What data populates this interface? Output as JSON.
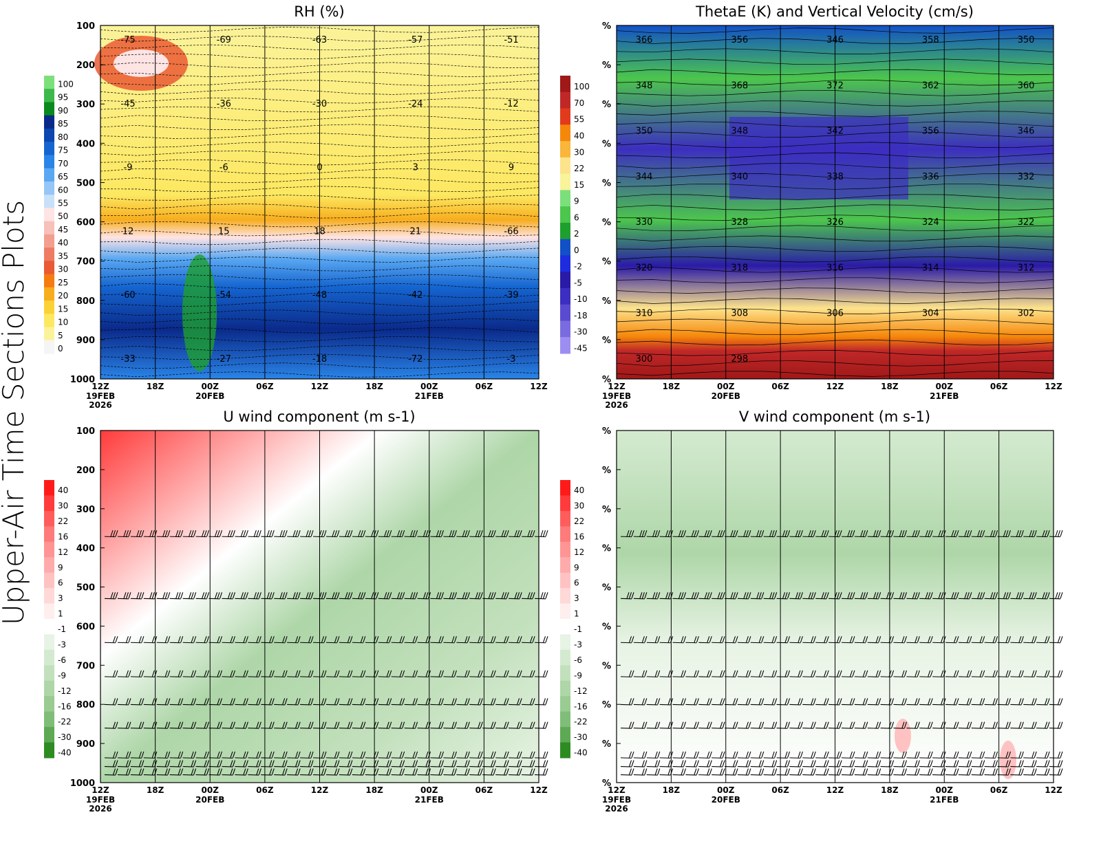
{
  "page_title": "Upper-Air Time Sections Plots",
  "time_axis": {
    "ticks": [
      "12Z",
      "18Z",
      "00Z",
      "06Z",
      "12Z",
      "18Z",
      "00Z",
      "06Z",
      "12Z"
    ],
    "date_labels": [
      {
        "at": "12Z",
        "index": 0,
        "lines": [
          "19FEB",
          "2026"
        ]
      },
      {
        "at": "00Z",
        "index": 2,
        "lines": [
          "20FEB"
        ]
      },
      {
        "at": "00Z",
        "index": 6,
        "lines": [
          "21FEB"
        ]
      }
    ]
  },
  "pressure_levels": [
    100,
    200,
    300,
    400,
    500,
    600,
    700,
    800,
    900,
    1000
  ],
  "right_panel_tick_label": "%",
  "chart_data": [
    {
      "id": "rh",
      "type": "heatmap",
      "title": "RH (%)",
      "x_ticks": [
        "12Z",
        "18Z",
        "00Z",
        "06Z",
        "12Z",
        "18Z",
        "00Z",
        "06Z",
        "12Z"
      ],
      "y_ticks": [
        "100",
        "200",
        "300",
        "400",
        "500",
        "600",
        "700",
        "800",
        "900",
        "1000"
      ],
      "ylim": [
        1000,
        100
      ],
      "y_log_scale": true,
      "colorbar_levels": [
        "100",
        "95",
        "90",
        "85",
        "80",
        "75",
        "70",
        "65",
        "60",
        "55",
        "50",
        "45",
        "40",
        "35",
        "30",
        "25",
        "20",
        "15",
        "10",
        "5",
        "0"
      ],
      "colorbar_colors": [
        "#7be07b",
        "#3cb94a",
        "#0a8a1e",
        "#0a2a8a",
        "#0d47b0",
        "#1565d0",
        "#2a85e8",
        "#5aa8f2",
        "#96c6f5",
        "#c8e0f8",
        "#ffe4e4",
        "#f7c0b8",
        "#f29f90",
        "#ee7c62",
        "#ea5a34",
        "#f57c10",
        "#f7ad1e",
        "#fbd236",
        "#fde861",
        "#fbf39a",
        "#f5f5f5"
      ],
      "contour_labels": [
        "-75",
        "-69",
        "-63",
        "-57",
        "-51",
        "-45",
        "-36",
        "-30",
        "-24",
        "-12",
        "-9",
        "-6",
        "0",
        "3",
        "9",
        "12",
        "15",
        "18",
        "21",
        "-66",
        "-60",
        "-54",
        "-48",
        "-42",
        "-39",
        "-33",
        "-27",
        "-18",
        "-72",
        "-3"
      ]
    },
    {
      "id": "thetae",
      "type": "heatmap",
      "title": "ThetaE (K) and Vertical Velocity (cm/s)",
      "x_ticks": [
        "12Z",
        "18Z",
        "00Z",
        "06Z",
        "12Z",
        "18Z",
        "00Z",
        "06Z",
        "12Z"
      ],
      "y_ticks": [
        "%",
        "%",
        "%",
        "%",
        "%",
        "%",
        "%",
        "%",
        "%",
        "%"
      ],
      "colorbar_levels": [
        "100",
        "70",
        "55",
        "40",
        "30",
        "22",
        "15",
        "9",
        "6",
        "2",
        "0",
        "-2",
        "-5",
        "-10",
        "-18",
        "-30",
        "-45"
      ],
      "colorbar_colors": [
        "#a01818",
        "#c02828",
        "#e23a1c",
        "#f5870a",
        "#f9b63a",
        "#fde38c",
        "#f9f39a",
        "#7be07b",
        "#4cc64c",
        "#1ea02e",
        "#1250c8",
        "#1e2ce0",
        "#2a1aa8",
        "#3c2ec0",
        "#5a4ad0",
        "#7a6ce0",
        "#9c8ef0"
      ],
      "contour_labels": [
        "366",
        "356",
        "346",
        "358",
        "350",
        "348",
        "368",
        "372",
        "362",
        "360",
        "350",
        "348",
        "342",
        "356",
        "346",
        "344",
        "340",
        "338",
        "336",
        "332",
        "330",
        "328",
        "326",
        "324",
        "322",
        "320",
        "318",
        "316",
        "314",
        "312",
        "310",
        "308",
        "306",
        "304",
        "302",
        "300",
        "298"
      ]
    },
    {
      "id": "uwind",
      "type": "heatmap",
      "title": "U wind component (m s-1)",
      "x_ticks": [
        "12Z",
        "18Z",
        "00Z",
        "06Z",
        "12Z",
        "18Z",
        "00Z",
        "06Z",
        "12Z"
      ],
      "y_ticks": [
        "100",
        "200",
        "300",
        "400",
        "500",
        "600",
        "700",
        "800",
        "900",
        "1000"
      ],
      "ylim": [
        1000,
        100
      ],
      "colorbar_levels": [
        "40",
        "30",
        "22",
        "16",
        "12",
        "9",
        "6",
        "3",
        "1",
        "-1",
        "-3",
        "-6",
        "-9",
        "-12",
        "-16",
        "-22",
        "-30",
        "-40"
      ],
      "colorbar_colors": [
        "#ff1a1a",
        "#ff3b3b",
        "#ff5c5c",
        "#ff7a7a",
        "#ff9494",
        "#ffabab",
        "#ffc2c2",
        "#ffd8d8",
        "#ffeeee",
        "#ffffff",
        "#e7f3e4",
        "#d4ead0",
        "#c2e0bc",
        "#aed6a8",
        "#99cb92",
        "#80bd78",
        "#5ea954",
        "#2e8b22"
      ],
      "wind_barb_levels": [
        "200",
        "300",
        "400",
        "500",
        "600",
        "700",
        "850",
        "900",
        "950"
      ]
    },
    {
      "id": "vwind",
      "type": "heatmap",
      "title": "V wind component (m s-1)",
      "x_ticks": [
        "12Z",
        "18Z",
        "00Z",
        "06Z",
        "12Z",
        "18Z",
        "00Z",
        "06Z",
        "12Z"
      ],
      "y_ticks": [
        "%",
        "%",
        "%",
        "%",
        "%",
        "%",
        "%",
        "%",
        "%",
        "%"
      ],
      "colorbar_levels": [
        "40",
        "30",
        "22",
        "16",
        "12",
        "9",
        "6",
        "3",
        "1",
        "-1",
        "-3",
        "-6",
        "-9",
        "-12",
        "-16",
        "-22",
        "-30",
        "-40"
      ],
      "colorbar_colors": [
        "#ff1a1a",
        "#ff3b3b",
        "#ff5c5c",
        "#ff7a7a",
        "#ff9494",
        "#ffabab",
        "#ffc2c2",
        "#ffd8d8",
        "#ffeeee",
        "#ffffff",
        "#e7f3e4",
        "#d4ead0",
        "#c2e0bc",
        "#aed6a8",
        "#99cb92",
        "#80bd78",
        "#5ea954",
        "#2e8b22"
      ],
      "wind_barb_levels": [
        "200",
        "300",
        "400",
        "500",
        "600",
        "700",
        "850",
        "900",
        "950"
      ]
    }
  ]
}
